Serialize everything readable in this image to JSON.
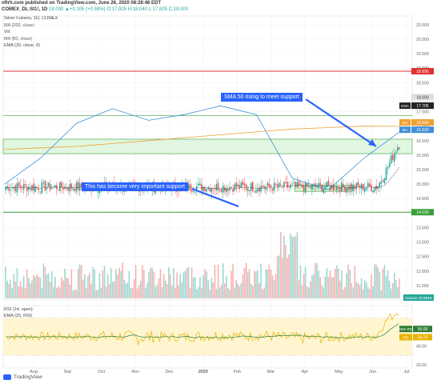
{
  "header": {
    "line1": "nftrh.com published on TradingView.com, June 26, 2020 08:28:46 EDT",
    "symbol": "COMEX_DL:SI1!, 1D",
    "ohlc": "18.000 ▲+0.105 (+0.59%) O:17.925 H:18.040 L:17.825 C:18.000"
  },
  "legend": {
    "title": "Silver Futures, 1D, COMEX",
    "ma200": "MA (200, close)",
    "vol": "Vol",
    "ma50": "MA (50, close)",
    "ema20": "EMA (20, close, 0)"
  },
  "rsi_legend": {
    "rsi": "RSI (14, open)",
    "ema": "EMA (20, RSI)"
  },
  "annotations": {
    "sma50": "SMA 50 rising to meet support",
    "support": "This has become very important support"
  },
  "price_tags": {
    "top": "18.895",
    "close": "18.000",
    "close2": "17.745",
    "ema": "17.705",
    "ema_label": "EMA",
    "ma": "16.990",
    "ma_label": "MA",
    "ma50": "16.820",
    "ma50_label": "MA",
    "support": "14.030",
    "volume_label": "Volume",
    "volume_val": "10.991K",
    "rsi_ema_label": "EMA RSI",
    "rsi_ema_val": "56.68",
    "rsi_label": "RSI",
    "rsi_val": "54.76"
  },
  "footer": {
    "brand": "TradingView"
  },
  "colors": {
    "up": "#26a69a",
    "down": "#ef5350",
    "ma200": "#f0a030",
    "ma50": "#3f8fd8",
    "ema20": "#222222",
    "red_line": "#e03030",
    "green_line": "#3aa03a",
    "zone_fill": "#c8f0c8",
    "arrow": "#2962ff",
    "rsi": "#e8b400",
    "rsi_ema": "#2e7d32",
    "rsi_band": "#fff3c4"
  },
  "chart_data": {
    "type": "candlestick",
    "title": "Silver Futures, 1D, COMEX",
    "y_ticks": [
      "20.500",
      "20.000",
      "19.500",
      "19.000",
      "18.500",
      "18.000",
      "17.500",
      "17.000",
      "16.500",
      "16.000",
      "15.500",
      "15.000",
      "14.500",
      "14.000",
      "13.500",
      "13.000",
      "12.500",
      "12.000",
      "11.500"
    ],
    "y_range": [
      11.0,
      20.8
    ],
    "x_ticks": [
      "Aug",
      "Sep",
      "Oct",
      "Nov",
      "Dec",
      "2020",
      "Feb",
      "Mar",
      "Apr",
      "May",
      "Jun",
      "Jul"
    ],
    "price_path": [
      [
        "Jul",
        14.9
      ],
      [
        "Jul",
        15.3
      ],
      [
        "Jul",
        15.8
      ],
      [
        "Jul",
        16.3
      ],
      [
        "Jul",
        16.5
      ],
      [
        "Aug",
        16.9
      ],
      [
        "Aug",
        17.1
      ],
      [
        "Aug",
        17.4
      ],
      [
        "Aug",
        17.9
      ],
      [
        "Aug",
        18.2
      ],
      [
        "Sep",
        18.6
      ],
      [
        "Sep",
        19.5
      ],
      [
        "Sep",
        18.3
      ],
      [
        "Sep",
        17.9
      ],
      [
        "Sep",
        18.2
      ],
      [
        "Oct",
        17.7
      ],
      [
        "Oct",
        17.5
      ],
      [
        "Oct",
        17.6
      ],
      [
        "Oct",
        17.8
      ],
      [
        "Oct",
        18.0
      ],
      [
        "Nov",
        17.7
      ],
      [
        "Nov",
        17.2
      ],
      [
        "Nov",
        16.8
      ],
      [
        "Nov",
        17.0
      ],
      [
        "Nov",
        17.2
      ],
      [
        "Dec",
        16.9
      ],
      [
        "Dec",
        16.8
      ],
      [
        "Dec",
        17.0
      ],
      [
        "Dec",
        17.5
      ],
      [
        "Dec",
        17.9
      ],
      [
        "2020",
        18.2
      ],
      [
        "2020",
        18.4
      ],
      [
        "2020",
        17.9
      ],
      [
        "2020",
        17.8
      ],
      [
        "2020",
        18.0
      ],
      [
        "Feb",
        17.6
      ],
      [
        "Feb",
        17.7
      ],
      [
        "Feb",
        18.0
      ],
      [
        "Feb",
        18.4
      ],
      [
        "Feb",
        18.8
      ],
      [
        "Mar",
        17.2
      ],
      [
        "Mar",
        16.6
      ],
      [
        "Mar",
        15.2
      ],
      [
        "Mar",
        13.0
      ],
      [
        "Mar",
        11.9
      ],
      [
        "Apr",
        14.0
      ],
      [
        "Apr",
        14.9
      ],
      [
        "Apr",
        14.3
      ],
      [
        "Apr",
        15.3
      ],
      [
        "Apr",
        15.6
      ],
      [
        "May",
        15.0
      ],
      [
        "May",
        14.9
      ],
      [
        "May",
        15.4
      ],
      [
        "May",
        16.5
      ],
      [
        "May",
        17.4
      ],
      [
        "Jun",
        17.8
      ],
      [
        "Jun",
        18.8
      ],
      [
        "Jun",
        17.6
      ],
      [
        "Jun",
        17.8
      ],
      [
        "Jun",
        18.0
      ]
    ],
    "ma200": [
      16.2,
      16.25,
      16.3,
      16.4,
      16.5,
      16.6,
      16.7,
      16.8,
      16.9,
      16.95,
      17.0,
      16.99
    ],
    "ma50": [
      15.0,
      15.9,
      17.1,
      17.6,
      17.2,
      17.4,
      17.7,
      17.4,
      15.2,
      14.8,
      15.9,
      16.82
    ],
    "resistance": 18.895,
    "support_line": 14.03,
    "support_zone": [
      16.05,
      16.55
    ],
    "small_zone": [
      14.75,
      14.95
    ],
    "volume_max": "10.991K",
    "rsi_range": [
      20,
      80
    ],
    "rsi_ticks": [
      "60.00",
      "40.00",
      "20.00"
    ],
    "rsi_last": 54.76,
    "rsi_ema_last": 56.68,
    "grid": true
  }
}
